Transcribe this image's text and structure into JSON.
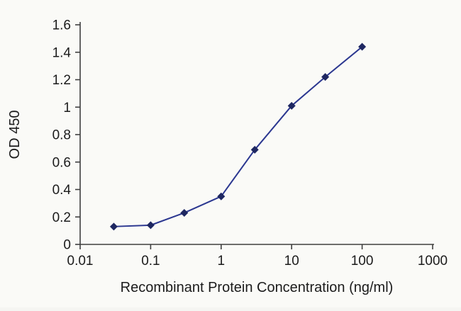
{
  "chart_data": {
    "type": "line",
    "title": "",
    "xlabel": "Recombinant Protein Concentration (ng/ml)",
    "ylabel": "OD 450",
    "xscale": "log",
    "xlim": [
      0.01,
      1000
    ],
    "ylim": [
      0,
      1.6
    ],
    "x": [
      0.03,
      0.1,
      0.3,
      1,
      3,
      10,
      30,
      100
    ],
    "y": [
      0.13,
      0.14,
      0.23,
      0.35,
      0.69,
      1.01,
      1.22,
      1.44
    ],
    "x_tick_values": [
      0.01,
      0.1,
      1,
      10,
      100,
      1000
    ],
    "x_tick_labels": [
      "0.01",
      "0.1",
      "1",
      "10",
      "100",
      "1000"
    ],
    "y_tick_values": [
      0,
      0.2,
      0.4,
      0.6,
      0.8,
      1,
      1.2,
      1.4,
      1.6
    ],
    "y_tick_labels": [
      "0",
      "0.2",
      "0.4",
      "0.6",
      "0.8",
      "1",
      "1.2",
      "1.4",
      "1.6"
    ],
    "grid": false,
    "legend": null,
    "line_color": "#2b3790",
    "marker": "diamond",
    "marker_color": "#1e2761",
    "axis_color": "#3f3f3f",
    "tick_label_color": "#1b1b1b",
    "background_color": "#fafaf7"
  }
}
